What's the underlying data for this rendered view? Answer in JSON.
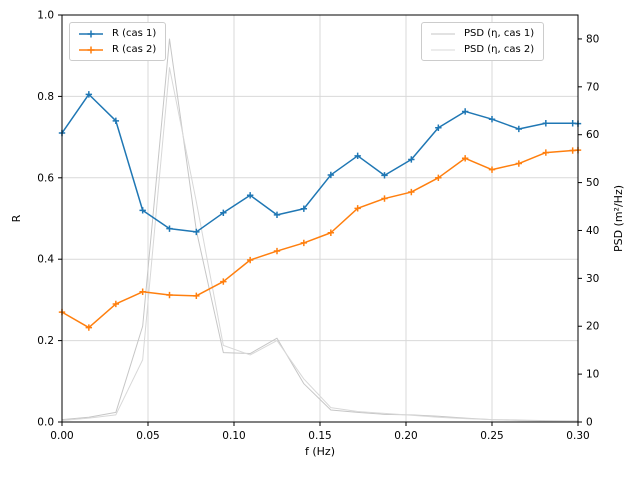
{
  "chart_data": {
    "type": "line",
    "title": "",
    "xlabel": "f (Hz)",
    "ylabel_left": "R",
    "ylabel_right": "PSD (m²/Hz)",
    "xlim": [
      0,
      0.3
    ],
    "ylim_left": [
      0,
      1.0
    ],
    "ylim_right": [
      0,
      85
    ],
    "grid": true,
    "legend_left_position": "upper left",
    "legend_right_position": "upper right",
    "x_tick_values": [
      0.0,
      0.05,
      0.1,
      0.15,
      0.2,
      0.25,
      0.3
    ],
    "x_tick_labels": [
      "0.00",
      "0.05",
      "0.10",
      "0.15",
      "0.20",
      "0.25",
      "0.30"
    ],
    "y_left_tick_values": [
      0.0,
      0.2,
      0.4,
      0.6,
      0.8,
      1.0
    ],
    "y_left_tick_labels": [
      "0.0",
      "0.2",
      "0.4",
      "0.6",
      "0.8",
      "1.0"
    ],
    "y_right_tick_values": [
      0,
      10,
      20,
      30,
      40,
      50,
      60,
      70,
      80
    ],
    "y_right_tick_labels": [
      "0",
      "10",
      "20",
      "30",
      "40",
      "50",
      "60",
      "70",
      "80"
    ],
    "x": [
      0.0,
      0.0156,
      0.0313,
      0.0469,
      0.0625,
      0.0781,
      0.0938,
      0.1094,
      0.125,
      0.1406,
      0.1563,
      0.1719,
      0.1875,
      0.2031,
      0.2188,
      0.2344,
      0.25,
      0.2656,
      0.2813,
      0.2969,
      0.3
    ],
    "series": [
      {
        "name": "R (cas 1)",
        "axis": "left",
        "color": "#1f77b4",
        "marker": "plus",
        "line_width": 1.5,
        "values": [
          0.71,
          0.805,
          0.74,
          0.52,
          0.475,
          0.467,
          0.514,
          0.557,
          0.509,
          0.524,
          0.607,
          0.654,
          0.606,
          0.645,
          0.723,
          0.763,
          0.744,
          0.72,
          0.734,
          0.734,
          0.733
        ]
      },
      {
        "name": "R (cas 2)",
        "axis": "left",
        "color": "#ff7f0e",
        "marker": "plus",
        "line_width": 1.5,
        "values": [
          0.27,
          0.232,
          0.29,
          0.32,
          0.312,
          0.31,
          0.345,
          0.398,
          0.42,
          0.44,
          0.465,
          0.525,
          0.549,
          0.565,
          0.6,
          0.648,
          0.62,
          0.635,
          0.662,
          0.667,
          0.668
        ]
      },
      {
        "name": "PSD (η, cas 1)",
        "axis": "right",
        "color": "#c6c6c6",
        "marker": "none",
        "line_width": 1,
        "values": [
          0.5,
          1.0,
          2.0,
          20.0,
          80.0,
          40.0,
          14.5,
          14.3,
          17.5,
          8.0,
          2.5,
          2.0,
          1.6,
          1.5,
          1.2,
          0.8,
          0.5,
          0.4,
          0.3,
          0.2,
          0.2
        ]
      },
      {
        "name": "PSD (η, cas 2)",
        "axis": "right",
        "color": "#d8d8d8",
        "marker": "none",
        "line_width": 1,
        "values": [
          0.3,
          0.8,
          1.5,
          13.0,
          74.0,
          46.0,
          16.0,
          14.0,
          17.0,
          9.0,
          3.0,
          2.2,
          1.8,
          1.4,
          1.0,
          0.7,
          0.5,
          0.3,
          0.2,
          0.1,
          0.1
        ]
      }
    ],
    "style": {
      "grid_color": "#d9d9d9",
      "spine_color": "#000000",
      "tick_label_color": "#000000"
    }
  }
}
